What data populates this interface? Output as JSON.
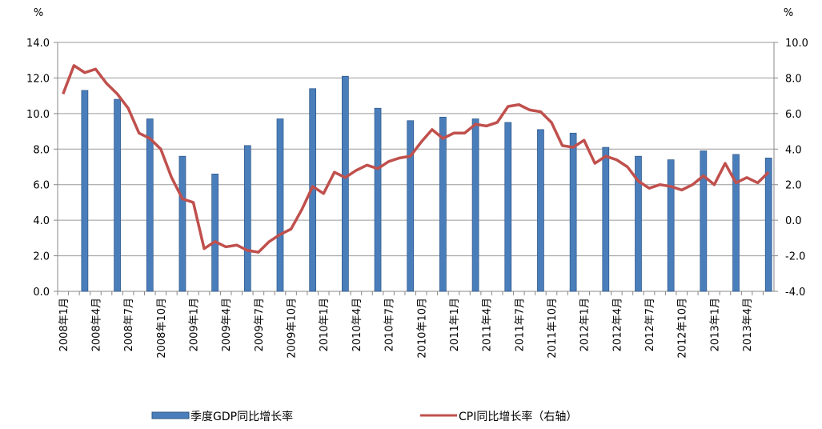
{
  "chart_data": {
    "type": "bar_line",
    "y_axis_label": "%",
    "y2_axis_label": "%",
    "categories": [
      "2008年1月",
      null,
      null,
      "2008年4月",
      null,
      null,
      "2008年7月",
      null,
      null,
      "2008年10月",
      null,
      null,
      "2009年1月",
      null,
      null,
      "2009年4月",
      null,
      null,
      "2009年7月",
      null,
      null,
      "2009年10月",
      null,
      null,
      "2010年1月",
      null,
      null,
      "2010年4月",
      null,
      null,
      "2010年7月",
      null,
      null,
      "2010年10月",
      null,
      null,
      "2011年1月",
      null,
      null,
      "2011年4月",
      null,
      null,
      "2011年7月",
      null,
      null,
      "2011年10月",
      null,
      null,
      "2012年1月",
      null,
      null,
      "2012年4月",
      null,
      null,
      "2012年7月",
      null,
      null,
      "2012年10月",
      null,
      null,
      "2013年1月",
      null,
      null,
      "2013年4月",
      null,
      null
    ],
    "series": [
      {
        "name": "季度GDP同比增长率",
        "kind": "bar",
        "color": "#4a7ebb",
        "values": [
          null,
          null,
          11.3,
          null,
          null,
          10.8,
          null,
          null,
          9.7,
          null,
          null,
          7.6,
          null,
          null,
          6.6,
          null,
          null,
          8.2,
          null,
          null,
          9.7,
          null,
          null,
          11.4,
          null,
          null,
          12.1,
          null,
          null,
          10.3,
          null,
          null,
          9.6,
          null,
          null,
          9.8,
          null,
          null,
          9.7,
          null,
          null,
          9.5,
          null,
          null,
          9.1,
          null,
          null,
          8.9,
          null,
          null,
          8.1,
          null,
          null,
          7.6,
          null,
          null,
          7.4,
          null,
          null,
          7.9,
          null,
          null,
          7.7,
          null,
          null,
          7.5
        ]
      },
      {
        "name": "CPI同比增长率（右轴）",
        "kind": "line",
        "axis": "y2",
        "color": "#c0504d",
        "values": [
          7.1,
          8.7,
          8.3,
          8.5,
          7.7,
          7.1,
          6.3,
          4.9,
          4.6,
          4.0,
          2.4,
          1.2,
          1.0,
          -1.6,
          -1.2,
          -1.5,
          -1.4,
          -1.7,
          -1.8,
          -1.2,
          -0.8,
          -0.5,
          0.6,
          1.9,
          1.5,
          2.7,
          2.4,
          2.8,
          3.1,
          2.9,
          3.3,
          3.5,
          3.6,
          4.4,
          5.1,
          4.6,
          4.9,
          4.9,
          5.4,
          5.3,
          5.5,
          6.4,
          6.5,
          6.2,
          6.1,
          5.5,
          4.2,
          4.1,
          4.5,
          3.2,
          3.6,
          3.4,
          3.0,
          2.2,
          1.8,
          2.0,
          1.9,
          1.7,
          2.0,
          2.5,
          2.0,
          3.2,
          2.1,
          2.4,
          2.1,
          2.7
        ]
      }
    ],
    "ylim": [
      0,
      14
    ],
    "yticks": [
      {
        "value": 0,
        "label": "0.0"
      },
      {
        "value": 2,
        "label": "2.0"
      },
      {
        "value": 4,
        "label": "4.0"
      },
      {
        "value": 6,
        "label": "6.0"
      },
      {
        "value": 8,
        "label": "8.0"
      },
      {
        "value": 10,
        "label": "10.0"
      },
      {
        "value": 12,
        "label": "12.0"
      },
      {
        "value": 14,
        "label": "14.0"
      }
    ],
    "y2lim": [
      -4,
      10
    ],
    "y2ticks": [
      {
        "value": -4,
        "label": "-4.0"
      },
      {
        "value": -2,
        "label": "-2.0"
      },
      {
        "value": 0,
        "label": "0.0"
      },
      {
        "value": 2,
        "label": "2.0"
      },
      {
        "value": 4,
        "label": "4.0"
      },
      {
        "value": 6,
        "label": "6.0"
      },
      {
        "value": 8,
        "label": "8.0"
      },
      {
        "value": 10,
        "label": "10.0"
      }
    ],
    "grid": true,
    "legend": "bottom"
  }
}
